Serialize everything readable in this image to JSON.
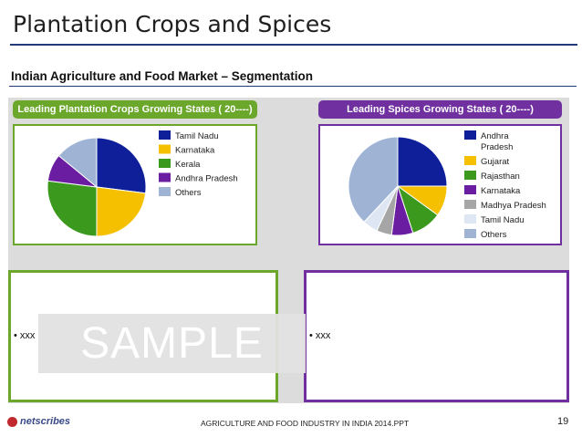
{
  "slide": {
    "title": "Plantation Crops and Spices",
    "subtitle": "Indian Agriculture and Food Market – Segmentation",
    "footer": "AGRICULTURE AND FOOD INDUSTRY IN INDIA 2014.PPT",
    "page_number": "19",
    "logo_text": "netscribes",
    "watermark": "SAMPLE",
    "bullets": {
      "left": "• xxx",
      "right": "• xxx"
    },
    "colors": {
      "green": "#6aa72a",
      "purple": "#7030a0",
      "navy": "#223a7a"
    }
  },
  "chart_data": [
    {
      "type": "pie",
      "title": "Leading Plantation Crops Growing States ( 20----)",
      "labels": [
        "Tamil Nadu",
        "Karnataka",
        "Kerala",
        "Andhra Pradesh",
        "Others"
      ],
      "values": [
        27,
        23,
        27,
        9,
        14
      ],
      "colors": [
        "#0f1f9a",
        "#f5c000",
        "#3b9a1e",
        "#6a1da0",
        "#9fb4d4"
      ],
      "legend": "right"
    },
    {
      "type": "pie",
      "title": "Leading Spices Growing States ( 20----)",
      "labels": [
        "Andhra Pradesh",
        "Gujarat",
        "Rajasthan",
        "Karnataka",
        "Madhya Pradesh",
        "Tamil Nadu",
        "Others"
      ],
      "values": [
        25,
        10,
        10,
        7,
        5,
        5,
        38
      ],
      "colors": [
        "#0f1f9a",
        "#f5c000",
        "#3b9a1e",
        "#6a1da0",
        "#a6a6a6",
        "#dde6f2",
        "#9fb4d4"
      ],
      "legend": "right"
    }
  ]
}
